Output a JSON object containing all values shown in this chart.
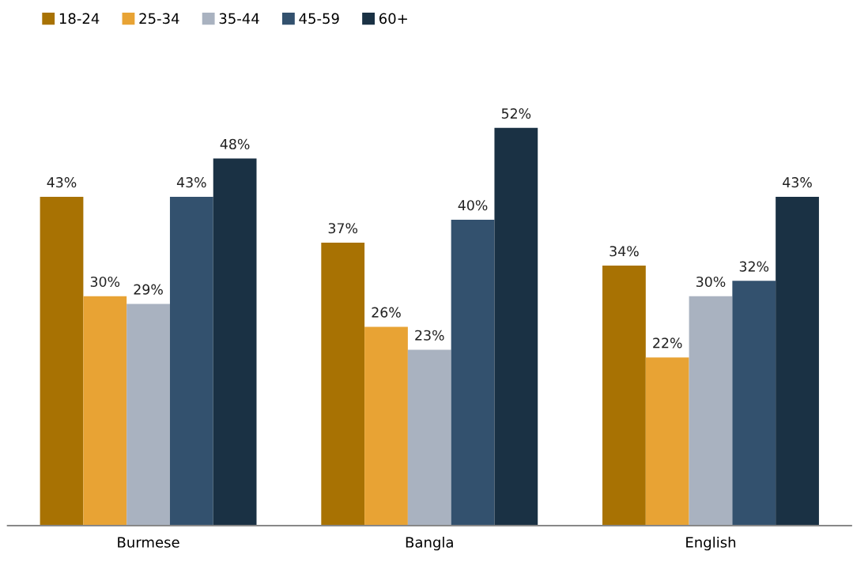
{
  "chart_data": {
    "type": "bar",
    "categories": [
      "Burmese",
      "Bangla",
      "English"
    ],
    "series": [
      {
        "name": "18-24",
        "color": "#a87203",
        "values": [
          43,
          37,
          34
        ],
        "value_labels": [
          "43%",
          "37%",
          "34%"
        ]
      },
      {
        "name": "25-34",
        "color": "#e8a334",
        "values": [
          30,
          26,
          22
        ],
        "value_labels": [
          "30%",
          "26%",
          "22%"
        ]
      },
      {
        "name": "35-44",
        "color": "#a9b2c0",
        "values": [
          29,
          23,
          30
        ],
        "value_labels": [
          "29%",
          "23%",
          "30%"
        ]
      },
      {
        "name": "45-59",
        "color": "#33516e",
        "values": [
          43,
          40,
          32
        ],
        "value_labels": [
          "43%",
          "40%",
          "32%"
        ]
      },
      {
        "name": "60+",
        "color": "#1a3144",
        "values": [
          48,
          52,
          43
        ],
        "value_labels": [
          "48%",
          "52%",
          "43%"
        ]
      }
    ],
    "legend": "top left"
  }
}
